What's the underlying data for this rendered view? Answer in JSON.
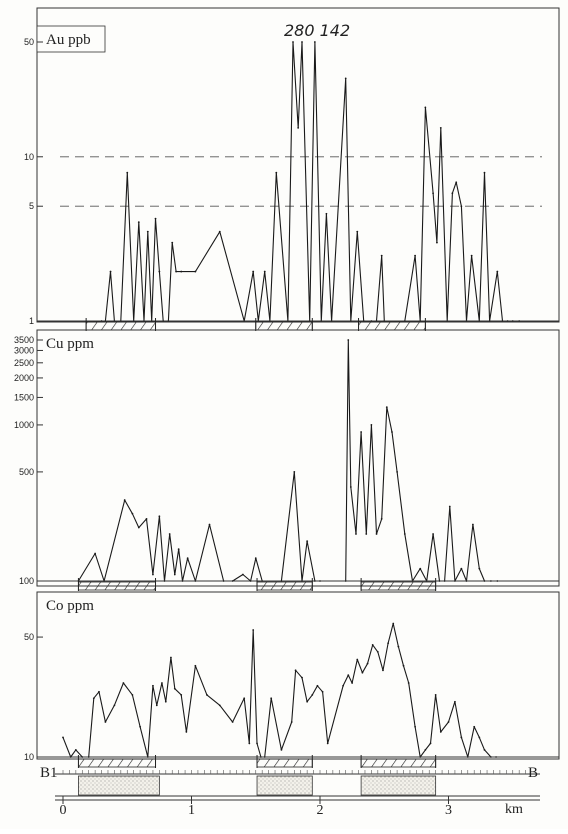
{
  "chart_data": [
    {
      "type": "line",
      "title": "Au ppb",
      "scale": "log",
      "ylim": [
        1,
        50
      ],
      "yticks": [
        1,
        5,
        10,
        50
      ],
      "reference_lines": [
        5,
        10
      ],
      "annotation": "280 142",
      "x_unit": "km",
      "x": [
        0.3,
        0.33,
        0.37,
        0.4,
        0.45,
        0.5,
        0.55,
        0.59,
        0.63,
        0.66,
        0.69,
        0.72,
        0.75,
        0.78,
        0.82,
        0.85,
        0.88,
        0.92,
        1.03,
        1.22,
        1.41,
        1.48,
        1.52,
        1.57,
        1.61,
        1.66,
        1.75,
        1.79,
        1.83,
        1.86,
        1.92,
        1.96,
        2.01,
        2.05,
        2.09,
        2.2,
        2.24,
        2.29,
        2.34,
        2.4,
        2.44,
        2.48,
        2.5,
        2.66,
        2.74,
        2.78,
        2.82,
        2.88,
        2.91,
        2.94,
        2.99,
        3.03,
        3.06,
        3.1,
        3.14,
        3.18,
        3.24,
        3.28,
        3.32,
        3.38,
        3.42,
        3.46,
        3.5,
        3.55
      ],
      "values": [
        1,
        1,
        2,
        1,
        1,
        8,
        1,
        4,
        1,
        3.5,
        1,
        4.2,
        2,
        1,
        1,
        3,
        2,
        2,
        2,
        3.5,
        1,
        2,
        1,
        2,
        1,
        8,
        1,
        50,
        15,
        50,
        1,
        50,
        1,
        4.5,
        1,
        30,
        1,
        3.5,
        1,
        1,
        1,
        2.5,
        1,
        1,
        2.5,
        1,
        20,
        6,
        3,
        15,
        1,
        6,
        7,
        5,
        1,
        2.5,
        1,
        8,
        1,
        2,
        1,
        1,
        1,
        1
      ],
      "hatched_intervals": [
        [
          0.18,
          0.72
        ],
        [
          1.5,
          1.94
        ],
        [
          2.3,
          2.82
        ]
      ]
    },
    {
      "type": "line",
      "title": "Cu ppm",
      "scale": "log",
      "ylim": [
        100,
        3500
      ],
      "yticks": [
        100,
        500,
        1000,
        1500,
        2000,
        2500,
        3000,
        3500
      ],
      "x_unit": "km",
      "x": [
        0.12,
        0.25,
        0.32,
        0.48,
        0.54,
        0.59,
        0.65,
        0.7,
        0.75,
        0.79,
        0.83,
        0.87,
        0.9,
        0.93,
        0.97,
        1.03,
        1.14,
        1.25,
        1.32,
        1.4,
        1.46,
        1.5,
        1.55,
        1.7,
        1.8,
        1.86,
        1.9,
        1.96,
        2.0,
        2.2,
        2.22,
        2.24,
        2.28,
        2.32,
        2.36,
        2.4,
        2.44,
        2.48,
        2.52,
        2.56,
        2.6,
        2.66,
        2.72,
        2.78,
        2.83,
        2.88,
        2.93,
        2.97,
        3.01,
        3.05,
        3.1,
        3.14,
        3.19,
        3.24,
        3.28,
        3.33,
        3.38
      ],
      "values": [
        100,
        150,
        100,
        330,
        270,
        220,
        250,
        110,
        260,
        100,
        200,
        110,
        160,
        100,
        140,
        100,
        230,
        100,
        100,
        110,
        100,
        140,
        100,
        100,
        500,
        100,
        180,
        100,
        100,
        100,
        3500,
        400,
        200,
        900,
        200,
        1000,
        200,
        250,
        1300,
        900,
        500,
        200,
        100,
        120,
        100,
        200,
        100,
        100,
        300,
        100,
        120,
        100,
        230,
        120,
        100,
        100,
        100
      ],
      "hatched_intervals": [
        [
          0.12,
          0.72
        ],
        [
          1.51,
          1.94
        ],
        [
          2.32,
          2.9
        ]
      ]
    },
    {
      "type": "line",
      "title": "Co ppm",
      "scale": "log",
      "ylim": [
        10,
        70
      ],
      "yticks": [
        10,
        50
      ],
      "x_unit": "km",
      "x": [
        0.0,
        0.06,
        0.1,
        0.15,
        0.2,
        0.24,
        0.28,
        0.33,
        0.4,
        0.47,
        0.54,
        0.6,
        0.66,
        0.7,
        0.73,
        0.77,
        0.8,
        0.84,
        0.87,
        0.92,
        0.96,
        1.03,
        1.12,
        1.22,
        1.32,
        1.41,
        1.45,
        1.48,
        1.51,
        1.54,
        1.57,
        1.62,
        1.7,
        1.78,
        1.81,
        1.86,
        1.9,
        1.94,
        1.98,
        2.02,
        2.06,
        2.18,
        2.22,
        2.25,
        2.29,
        2.33,
        2.37,
        2.41,
        2.45,
        2.49,
        2.53,
        2.57,
        2.61,
        2.65,
        2.69,
        2.74,
        2.78,
        2.82,
        2.86,
        2.9,
        2.94,
        3.0,
        3.05,
        3.1,
        3.15,
        3.2,
        3.24,
        3.28,
        3.33,
        3.37
      ],
      "values": [
        13,
        10,
        11,
        10,
        10,
        22,
        24,
        16,
        20,
        27,
        23,
        15,
        10,
        26,
        20,
        27,
        21,
        38,
        25,
        23,
        14,
        34,
        23,
        20,
        16,
        22,
        12,
        55,
        12,
        10,
        10,
        22,
        11,
        16,
        32,
        29,
        21,
        23,
        26,
        24,
        12,
        26,
        30,
        27,
        37,
        31,
        35,
        45,
        41,
        32,
        46,
        60,
        44,
        34,
        27,
        15,
        10,
        11,
        12,
        23,
        14,
        16,
        21,
        13,
        10,
        15,
        13,
        11,
        10,
        10
      ],
      "hatched_intervals": [
        [
          0.12,
          0.72
        ],
        [
          1.51,
          1.94
        ],
        [
          2.32,
          2.9
        ]
      ]
    }
  ],
  "section": {
    "start_label": "B1",
    "end_label": "B",
    "dotted_intervals": [
      [
        0.12,
        0.75
      ],
      [
        1.51,
        1.94
      ],
      [
        2.32,
        2.9
      ]
    ]
  },
  "scale_bar": {
    "tick_labels": [
      "0",
      "1",
      "2",
      "3"
    ],
    "tick_values": [
      0,
      1,
      2,
      3
    ],
    "unit": "km"
  }
}
